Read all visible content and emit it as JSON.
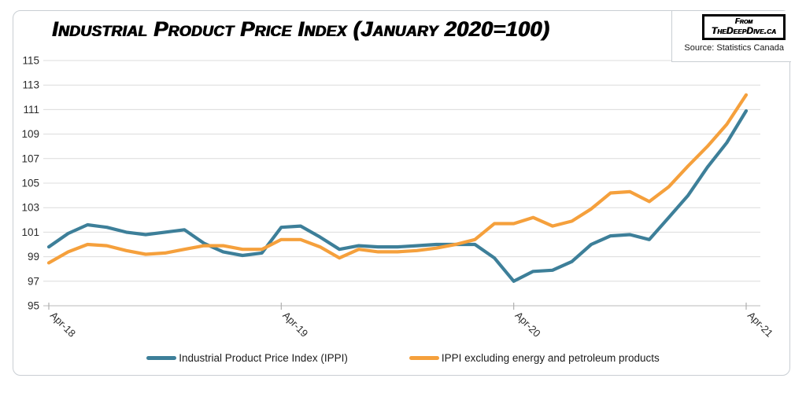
{
  "title": "Industrial Product Price Index (January 2020=100)",
  "badge": {
    "line1": "From",
    "line2": "TheDeepDive.ca",
    "source": "Source: Statistics Canada"
  },
  "legend": [
    {
      "label": "Industrial Product Price Index (IPPI)",
      "color": "#3d7f99"
    },
    {
      "label": "IPPI excluding energy and petroleum products",
      "color": "#f5a03c"
    }
  ],
  "colors": {
    "ippi_line": "#3d7f99",
    "ex_energy_line": "#f5a03c",
    "gridline": "#dcdcdc",
    "axis": "#c6c6c6",
    "tick": "#b0b0b0",
    "label_text": "#2b2b2b"
  },
  "chart_data": {
    "type": "line",
    "title": "Industrial Product Price Index (January 2020=100)",
    "xlabel": "",
    "ylabel": "",
    "ylim": [
      95,
      115
    ],
    "grid": true,
    "legend_position": "bottom",
    "y_ticks": [
      95,
      97,
      99,
      101,
      103,
      105,
      107,
      109,
      111,
      113,
      115
    ],
    "x": [
      "Apr-18",
      "May-18",
      "Jun-18",
      "Jul-18",
      "Aug-18",
      "Sep-18",
      "Oct-18",
      "Nov-18",
      "Dec-18",
      "Jan-19",
      "Feb-19",
      "Mar-19",
      "Apr-19",
      "May-19",
      "Jun-19",
      "Jul-19",
      "Aug-19",
      "Sep-19",
      "Oct-19",
      "Nov-19",
      "Dec-19",
      "Jan-20",
      "Feb-20",
      "Mar-20",
      "Apr-20",
      "May-20",
      "Jun-20",
      "Jul-20",
      "Aug-20",
      "Sep-20",
      "Oct-20",
      "Nov-20",
      "Dec-20",
      "Jan-21",
      "Feb-21",
      "Mar-21",
      "Apr-21"
    ],
    "x_ticks": [
      {
        "label": "Apr-18",
        "index": 0
      },
      {
        "label": "Apr-19",
        "index": 12
      },
      {
        "label": "Apr-20",
        "index": 24
      },
      {
        "label": "Apr-21",
        "index": 36
      }
    ],
    "series": [
      {
        "name": "Industrial Product Price Index (IPPI)",
        "color": "#3d7f99",
        "values": [
          99.8,
          100.9,
          101.6,
          101.4,
          101.0,
          100.8,
          101.0,
          101.2,
          100.1,
          99.4,
          99.1,
          99.3,
          101.4,
          101.5,
          100.6,
          99.6,
          99.9,
          99.8,
          99.8,
          99.9,
          100.0,
          100.0,
          100.0,
          98.9,
          97.0,
          97.8,
          97.9,
          98.6,
          100.0,
          100.7,
          100.8,
          100.4,
          102.2,
          104.0,
          106.3,
          108.3,
          110.9
        ]
      },
      {
        "name": "IPPI excluding energy and petroleum products",
        "color": "#f5a03c",
        "values": [
          98.5,
          99.4,
          100.0,
          99.9,
          99.5,
          99.2,
          99.3,
          99.6,
          99.9,
          99.9,
          99.6,
          99.6,
          100.4,
          100.4,
          99.8,
          98.9,
          99.6,
          99.4,
          99.4,
          99.5,
          99.7,
          100.0,
          100.4,
          101.7,
          101.7,
          102.2,
          101.5,
          101.9,
          102.9,
          104.2,
          104.3,
          103.5,
          104.7,
          106.4,
          108.0,
          109.8,
          112.2
        ]
      }
    ]
  }
}
